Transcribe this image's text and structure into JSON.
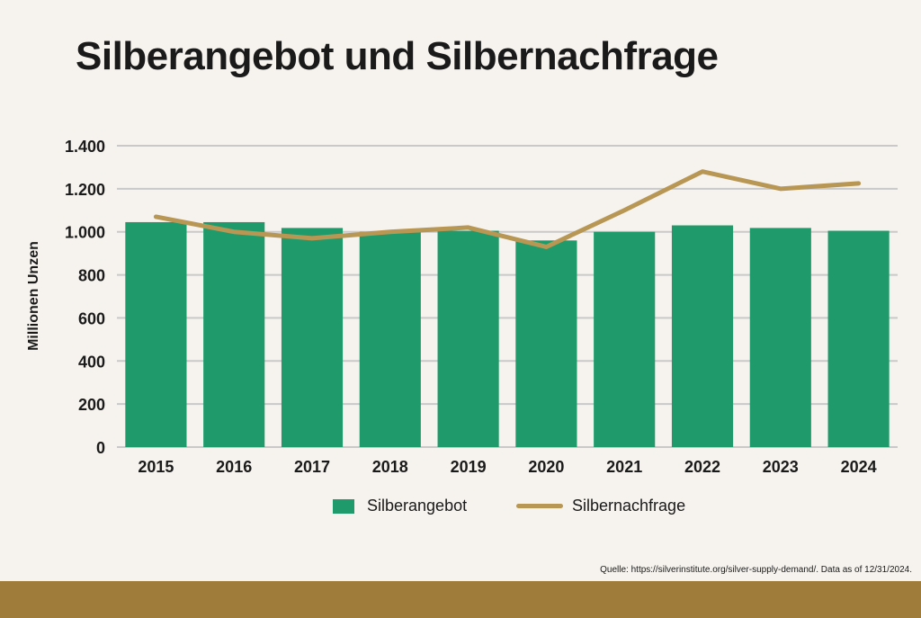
{
  "title": "Silberangebot und Silbernachfrage",
  "source": "Quelle: https://silverinstitute.org/silver-supply-demand/. Data as of 12/31/2024.",
  "colors": {
    "background": "#f6f3ee",
    "supply": "#1e9a6b",
    "demand": "#b89654",
    "footer": "#a07c3a",
    "grid": "#c9c9c9",
    "text": "#1a1a1a"
  },
  "legend": {
    "supply_label": "Silberangebot",
    "demand_label": "Silbernachfrage"
  },
  "chart_data": {
    "type": "bar",
    "title": "Silberangebot und Silbernachfrage",
    "ylabel": "Millionen Unzen",
    "xlabel": "",
    "ylim": [
      0,
      1400
    ],
    "yticks": [
      0,
      200,
      400,
      600,
      800,
      1000,
      1200,
      1400
    ],
    "ytick_labels": [
      "0",
      "200",
      "400",
      "600",
      "800",
      "1.000",
      "1.200",
      "1.400"
    ],
    "categories": [
      "2015",
      "2016",
      "2017",
      "2018",
      "2019",
      "2020",
      "2021",
      "2022",
      "2023",
      "2024"
    ],
    "grid": true,
    "legend_position": "bottom",
    "series": [
      {
        "name": "Silberangebot",
        "type": "bar",
        "values": [
          1045,
          1045,
          1018,
          1000,
          1005,
          960,
          1000,
          1030,
          1018,
          1005
        ]
      },
      {
        "name": "Silbernachfrage",
        "type": "line",
        "values": [
          1070,
          1000,
          970,
          1000,
          1020,
          930,
          1100,
          1280,
          1200,
          1225
        ]
      }
    ]
  }
}
